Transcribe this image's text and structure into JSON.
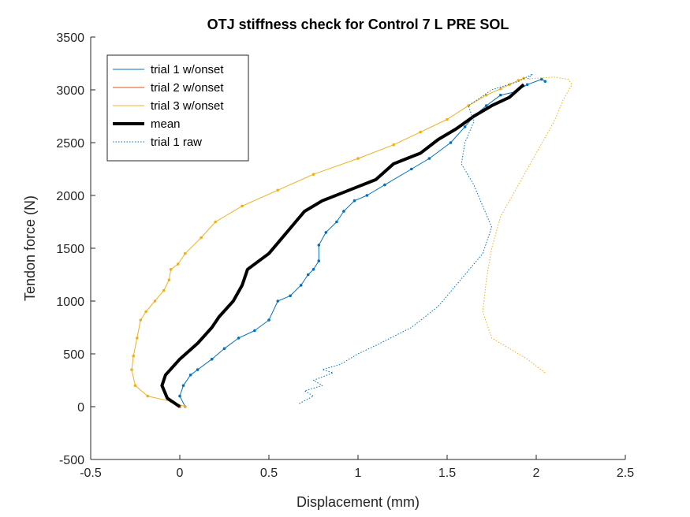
{
  "chart_data": {
    "type": "line",
    "title": "OTJ stiffness check for Control 7 L PRE SOL",
    "xlabel": "Displacement (mm)",
    "ylabel": "Tendon force (N)",
    "xlim": [
      -0.5,
      2.5
    ],
    "ylim": [
      -500,
      3500
    ],
    "xticks": [
      -0.5,
      0,
      0.5,
      1,
      1.5,
      2,
      2.5
    ],
    "yticks": [
      -500,
      0,
      500,
      1000,
      1500,
      2000,
      2500,
      3000,
      3500
    ],
    "xtick_labels": [
      "-0.5",
      "0",
      "0.5",
      "1",
      "1.5",
      "2",
      "2.5"
    ],
    "ytick_labels": [
      "-500",
      "0",
      "500",
      "1000",
      "1500",
      "2000",
      "2500",
      "3000",
      "3500"
    ],
    "grid": false,
    "legend_position": "top-left",
    "series": [
      {
        "name": "trial 1 w/onset",
        "color": "#0072BD",
        "style": "solid-markers",
        "x": [
          0.03,
          0.0,
          0.02,
          0.06,
          0.1,
          0.18,
          0.25,
          0.33,
          0.42,
          0.5,
          0.55,
          0.62,
          0.68,
          0.72,
          0.75,
          0.78,
          0.78,
          0.82,
          0.88,
          0.92,
          0.98,
          1.05,
          1.15,
          1.3,
          1.4,
          1.52,
          1.6,
          1.65,
          1.72,
          1.8,
          1.88,
          1.95,
          2.03,
          2.05
        ],
        "y": [
          0,
          100,
          200,
          300,
          350,
          450,
          550,
          650,
          720,
          820,
          1000,
          1050,
          1150,
          1250,
          1300,
          1380,
          1530,
          1650,
          1750,
          1850,
          1950,
          2000,
          2100,
          2250,
          2350,
          2500,
          2650,
          2750,
          2850,
          2950,
          2980,
          3050,
          3100,
          3080
        ]
      },
      {
        "name": "trial 2 w/onset",
        "color": "#D95319",
        "style": "solid-markers",
        "x": [
          0.0
        ],
        "y": [
          0
        ]
      },
      {
        "name": "trial 3 w/onset",
        "color": "#EDB120",
        "style": "solid-markers",
        "x": [
          0.03,
          -0.05,
          -0.18,
          -0.25,
          -0.27,
          -0.26,
          -0.24,
          -0.22,
          -0.19,
          -0.14,
          -0.09,
          -0.06,
          -0.05,
          -0.01,
          0.03,
          0.12,
          0.2,
          0.35,
          0.55,
          0.75,
          1.0,
          1.2,
          1.35,
          1.5,
          1.62,
          1.72,
          1.8,
          1.85,
          1.9,
          1.93
        ],
        "y": [
          0,
          50,
          100,
          200,
          350,
          480,
          650,
          820,
          900,
          1000,
          1100,
          1200,
          1300,
          1350,
          1450,
          1600,
          1750,
          1900,
          2050,
          2200,
          2350,
          2480,
          2600,
          2720,
          2850,
          2950,
          3010,
          3050,
          3090,
          3110
        ]
      },
      {
        "name": "mean",
        "color": "#000000",
        "style": "thick",
        "x": [
          0.0,
          -0.07,
          -0.1,
          -0.08,
          0.0,
          0.1,
          0.18,
          0.22,
          0.3,
          0.35,
          0.38,
          0.5,
          0.6,
          0.65,
          0.7,
          0.8,
          0.95,
          1.1,
          1.2,
          1.35,
          1.45,
          1.55,
          1.65,
          1.75,
          1.85,
          1.93
        ],
        "y": [
          0,
          80,
          200,
          300,
          450,
          600,
          750,
          850,
          1000,
          1150,
          1300,
          1450,
          1650,
          1750,
          1850,
          1950,
          2050,
          2150,
          2300,
          2400,
          2530,
          2630,
          2750,
          2850,
          2930,
          3050
        ]
      },
      {
        "name": "trial 1 raw",
        "color": "#0072BD",
        "style": "dotted",
        "x": [
          0.67,
          0.75,
          0.7,
          0.8,
          0.75,
          0.86,
          0.8,
          0.9,
          1.0,
          1.1,
          1.3,
          1.45,
          1.6,
          1.7,
          1.75,
          1.7,
          1.65,
          1.58,
          1.6,
          1.65,
          1.62,
          1.75,
          1.9,
          1.98,
          1.95
        ],
        "y": [
          30,
          100,
          150,
          200,
          250,
          320,
          350,
          400,
          500,
          580,
          750,
          950,
          1250,
          1450,
          1700,
          1900,
          2100,
          2300,
          2500,
          2700,
          2850,
          3000,
          3080,
          3150,
          3100
        ]
      },
      {
        "name": "",
        "color": "#EDB120",
        "style": "dotted",
        "x": [
          2.05,
          1.95,
          1.85,
          1.75,
          1.7,
          1.72,
          1.75,
          1.8,
          1.9,
          2.0,
          2.1,
          2.15,
          2.2,
          2.18,
          2.1,
          2.0,
          1.95
        ],
        "y": [
          320,
          450,
          550,
          650,
          900,
          1200,
          1500,
          1800,
          2100,
          2400,
          2700,
          2900,
          3050,
          3100,
          3120,
          3110,
          3100
        ]
      }
    ]
  }
}
